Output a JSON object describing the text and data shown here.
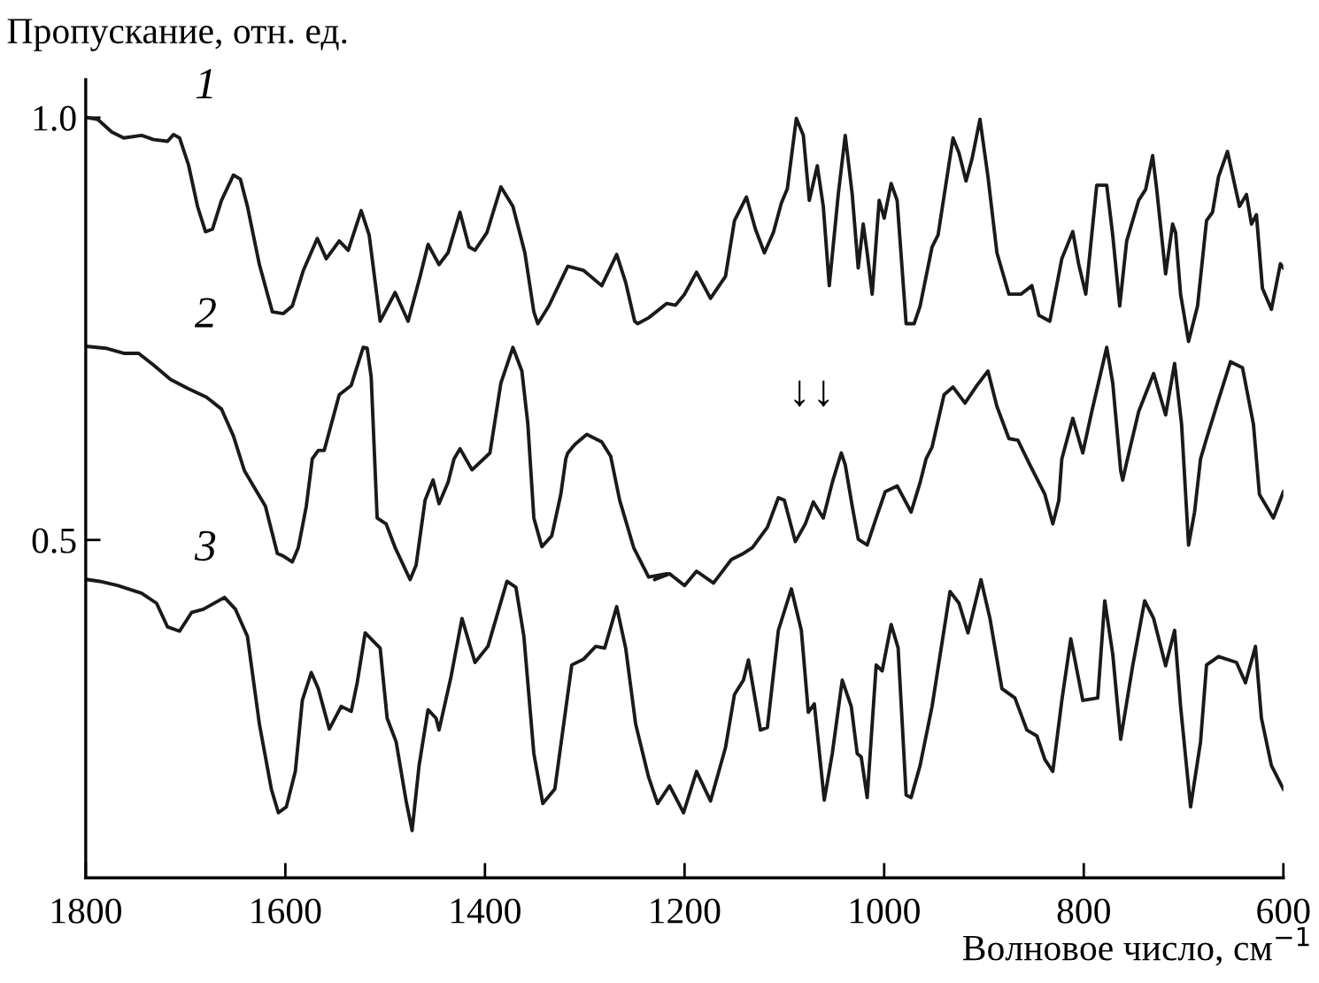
{
  "chart_data": {
    "type": "line",
    "ylabel": "Пропускание, отн. ед.",
    "xlabel": "Волновое число, см$^{−1}$",
    "xlim": [
      1800,
      600
    ],
    "ylim": [
      0.1,
      1.045
    ],
    "xticks": [
      1800,
      1600,
      1400,
      1200,
      1000,
      800,
      600
    ],
    "yticks": [
      {
        "value": 1.0,
        "label": "1.0"
      },
      0.5
    ],
    "grid": false,
    "legend": false,
    "marker": "none",
    "line_style": "solid",
    "series": [
      {
        "color": "#1a1a1a",
        "x": [
          1798,
          1788,
          1774,
          1762,
          1744,
          1732,
          1718,
          1712,
          1706,
          1697,
          1688,
          1680,
          1673,
          1664,
          1652,
          1645,
          1638,
          1626,
          1613,
          1602,
          1593,
          1582,
          1568,
          1559,
          1546,
          1537,
          1524,
          1516,
          1505,
          1490,
          1477,
          1465,
          1457,
          1446,
          1437,
          1425,
          1416,
          1410,
          1398,
          1384,
          1372,
          1360,
          1351,
          1347,
          1336,
          1317,
          1301,
          1283,
          1268,
          1259,
          1250,
          1247,
          1236,
          1218,
          1209,
          1200,
          1188,
          1174,
          1159,
          1150,
          1138,
          1129,
          1120,
          1111,
          1103,
          1097,
          1088,
          1081,
          1075,
          1067,
          1061,
          1055,
          1046,
          1039,
          1032,
          1026,
          1021,
          1017,
          1012,
          1005,
          1000,
          993,
          987,
          978,
          970,
          964,
          952,
          946,
          931,
          925,
          918,
          912,
          904,
          896,
          887,
          875,
          863,
          852,
          845,
          834,
          822,
          811,
          805,
          798,
          787,
          777,
          771,
          764,
          757,
          745,
          738,
          731,
          727,
          718,
          711,
          708,
          703,
          695,
          686,
          677,
          671,
          665,
          656,
          650,
          644,
          637,
          632,
          627,
          621,
          612,
          603,
          600
        ],
        "values": [
          1.0,
          0.998,
          0.983,
          0.976,
          0.979,
          0.974,
          0.972,
          0.98,
          0.976,
          0.944,
          0.895,
          0.865,
          0.868,
          0.902,
          0.932,
          0.927,
          0.895,
          0.826,
          0.77,
          0.768,
          0.777,
          0.819,
          0.857,
          0.833,
          0.854,
          0.843,
          0.89,
          0.861,
          0.759,
          0.793,
          0.759,
          0.812,
          0.85,
          0.826,
          0.84,
          0.888,
          0.847,
          0.843,
          0.864,
          0.918,
          0.895,
          0.84,
          0.77,
          0.756,
          0.777,
          0.824,
          0.819,
          0.801,
          0.838,
          0.805,
          0.759,
          0.756,
          0.763,
          0.78,
          0.778,
          0.791,
          0.817,
          0.786,
          0.812,
          0.878,
          0.906,
          0.868,
          0.84,
          0.864,
          0.899,
          0.916,
          0.999,
          0.979,
          0.902,
          0.943,
          0.895,
          0.801,
          0.909,
          0.979,
          0.909,
          0.822,
          0.874,
          0.84,
          0.791,
          0.902,
          0.881,
          0.922,
          0.902,
          0.756,
          0.756,
          0.777,
          0.847,
          0.861,
          0.976,
          0.958,
          0.925,
          0.951,
          0.998,
          0.93,
          0.84,
          0.791,
          0.791,
          0.801,
          0.766,
          0.759,
          0.833,
          0.865,
          0.826,
          0.791,
          0.92,
          0.92,
          0.861,
          0.777,
          0.854,
          0.902,
          0.915,
          0.955,
          0.916,
          0.815,
          0.874,
          0.864,
          0.791,
          0.735,
          0.777,
          0.878,
          0.888,
          0.93,
          0.96,
          0.927,
          0.895,
          0.909,
          0.874,
          0.885,
          0.798,
          0.773,
          0.827,
          0.822
        ]
      },
      {
        "color": "#1a1a1a",
        "x": [
          1798,
          1780,
          1762,
          1747,
          1732,
          1715,
          1697,
          1679,
          1664,
          1652,
          1641,
          1632,
          1620,
          1614,
          1608,
          1602,
          1593,
          1587,
          1579,
          1573,
          1567,
          1561,
          1546,
          1534,
          1522,
          1518,
          1514,
          1508,
          1499,
          1490,
          1475,
          1469,
          1460,
          1452,
          1446,
          1437,
          1431,
          1425,
          1413,
          1395,
          1384,
          1372,
          1363,
          1357,
          1351,
          1343,
          1333,
          1324,
          1319,
          1317,
          1310,
          1298,
          1283,
          1274,
          1265,
          1251,
          1236,
          1218,
          1230,
          1215,
          1200,
          1188,
          1171,
          1153,
          1141,
          1132,
          1117,
          1106,
          1100,
          1089,
          1079,
          1071,
          1061,
          1052,
          1043,
          1039,
          1032,
          1026,
          1017,
          1008,
          999,
          987,
          973,
          964,
          958,
          952,
          940,
          931,
          919,
          907,
          896,
          887,
          875,
          866,
          854,
          839,
          831,
          825,
          822,
          811,
          801,
          792,
          777,
          771,
          763,
          761,
          757,
          745,
          730,
          718,
          709,
          702,
          695,
          689,
          683,
          677,
          665,
          653,
          641,
          630,
          624,
          610,
          600
        ],
        "values": [
          0.729,
          0.727,
          0.721,
          0.721,
          0.707,
          0.69,
          0.679,
          0.669,
          0.655,
          0.623,
          0.582,
          0.564,
          0.54,
          0.512,
          0.484,
          0.481,
          0.474,
          0.491,
          0.54,
          0.596,
          0.606,
          0.606,
          0.672,
          0.683,
          0.728,
          0.727,
          0.693,
          0.526,
          0.519,
          0.491,
          0.453,
          0.47,
          0.547,
          0.571,
          0.543,
          0.568,
          0.596,
          0.608,
          0.583,
          0.603,
          0.686,
          0.728,
          0.7,
          0.637,
          0.526,
          0.492,
          0.505,
          0.554,
          0.596,
          0.603,
          0.613,
          0.625,
          0.616,
          0.599,
          0.547,
          0.491,
          0.456,
          0.46,
          0.453,
          0.46,
          0.446,
          0.463,
          0.449,
          0.477,
          0.484,
          0.491,
          0.515,
          0.55,
          0.547,
          0.498,
          0.519,
          0.545,
          0.526,
          0.568,
          0.603,
          0.589,
          0.54,
          0.501,
          0.494,
          0.526,
          0.557,
          0.564,
          0.533,
          0.568,
          0.596,
          0.61,
          0.672,
          0.681,
          0.662,
          0.683,
          0.7,
          0.658,
          0.62,
          0.618,
          0.589,
          0.554,
          0.519,
          0.547,
          0.596,
          0.644,
          0.603,
          0.652,
          0.728,
          0.686,
          0.582,
          0.571,
          0.592,
          0.652,
          0.697,
          0.648,
          0.709,
          0.637,
          0.494,
          0.533,
          0.596,
          0.62,
          0.666,
          0.711,
          0.704,
          0.637,
          0.554,
          0.526,
          0.557
        ]
      },
      {
        "color": "#1a1a1a",
        "x": [
          1798,
          1786,
          1768,
          1744,
          1729,
          1718,
          1706,
          1694,
          1682,
          1661,
          1650,
          1638,
          1626,
          1614,
          1607,
          1599,
          1590,
          1583,
          1574,
          1567,
          1556,
          1544,
          1534,
          1528,
          1520,
          1505,
          1498,
          1489,
          1479,
          1473,
          1466,
          1457,
          1449,
          1446,
          1434,
          1423,
          1410,
          1397,
          1378,
          1369,
          1361,
          1351,
          1342,
          1330,
          1313,
          1301,
          1289,
          1280,
          1268,
          1259,
          1249,
          1236,
          1227,
          1215,
          1201,
          1188,
          1174,
          1159,
          1150,
          1141,
          1136,
          1124,
          1117,
          1106,
          1093,
          1083,
          1076,
          1070,
          1060,
          1052,
          1042,
          1033,
          1027,
          1023,
          1017,
          1008,
          1002,
          993,
          986,
          978,
          973,
          964,
          952,
          934,
          925,
          916,
          903,
          894,
          882,
          869,
          857,
          847,
          839,
          831,
          822,
          813,
          801,
          786,
          779,
          771,
          763,
          751,
          739,
          730,
          718,
          709,
          703,
          693,
          683,
          677,
          665,
          647,
          638,
          628,
          622,
          612,
          600
        ],
        "values": [
          0.453,
          0.451,
          0.446,
          0.437,
          0.425,
          0.397,
          0.392,
          0.414,
          0.418,
          0.432,
          0.418,
          0.386,
          0.282,
          0.205,
          0.177,
          0.184,
          0.226,
          0.31,
          0.343,
          0.324,
          0.276,
          0.303,
          0.297,
          0.331,
          0.39,
          0.372,
          0.289,
          0.261,
          0.191,
          0.156,
          0.233,
          0.299,
          0.289,
          0.275,
          0.338,
          0.407,
          0.355,
          0.374,
          0.451,
          0.444,
          0.386,
          0.247,
          0.188,
          0.205,
          0.352,
          0.359,
          0.374,
          0.372,
          0.421,
          0.372,
          0.282,
          0.219,
          0.188,
          0.209,
          0.177,
          0.226,
          0.191,
          0.254,
          0.317,
          0.334,
          0.358,
          0.275,
          0.278,
          0.393,
          0.442,
          0.393,
          0.296,
          0.306,
          0.192,
          0.247,
          0.334,
          0.303,
          0.247,
          0.243,
          0.195,
          0.352,
          0.345,
          0.4,
          0.372,
          0.198,
          0.195,
          0.233,
          0.303,
          0.439,
          0.425,
          0.39,
          0.453,
          0.407,
          0.324,
          0.313,
          0.275,
          0.268,
          0.24,
          0.226,
          0.31,
          0.383,
          0.31,
          0.313,
          0.428,
          0.365,
          0.264,
          0.351,
          0.428,
          0.407,
          0.351,
          0.393,
          0.303,
          0.184,
          0.261,
          0.352,
          0.362,
          0.355,
          0.331,
          0.374,
          0.289,
          0.233,
          0.205
        ]
      }
    ],
    "annotations": [
      "1",
      "2",
      "3",
      "↓",
      "↓"
    ]
  }
}
